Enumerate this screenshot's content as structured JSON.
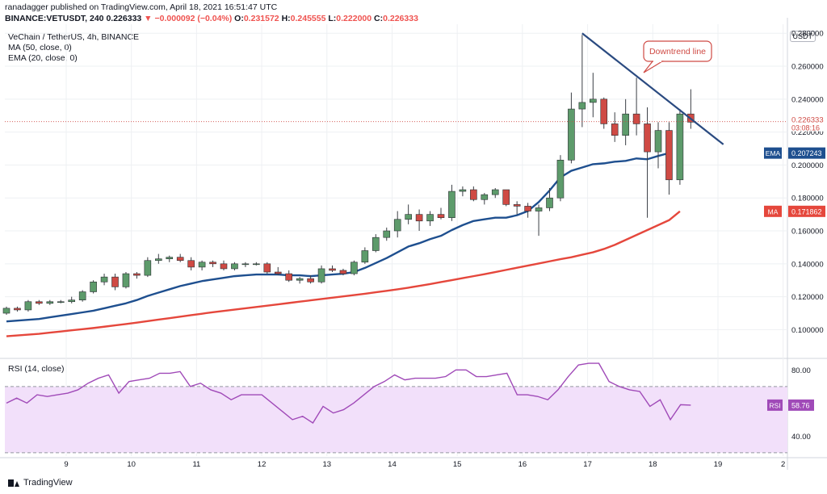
{
  "header": {
    "publisher": "ranadagger published on TradingView.com, April 18, 2021 16:51:47 UTC",
    "symbol": "BINANCE:VETUSDT, 240",
    "last": "0.226333",
    "change": "−0.000092 (−0.04%)",
    "o_label": "O:",
    "o": "0.231572",
    "h_label": "H:",
    "h": "0.245555",
    "l_label": "L:",
    "l": "0.222000",
    "c_label": "C:",
    "c": "0.226333"
  },
  "legend": {
    "title": "VeChain / TetherUS, 4h, BINANCE",
    "ma": "MA (50, close, 0)",
    "ema": "EMA (20, close, 0)",
    "rsi": "RSI (14, close)"
  },
  "footer": {
    "brand": "TradingView"
  },
  "axis": {
    "currency": "USDT"
  },
  "colors": {
    "up": "#5d9b6b",
    "down": "#cf4a44",
    "ema": "#1e4f8f",
    "ma": "#e5473c",
    "rsi_line": "#a04ab8",
    "rsi_band": "#f2e0fa",
    "trendline": "#2a4a80",
    "grid": "#eef0f3"
  },
  "chart_data": [
    {
      "type": "candlestick",
      "title": "VeChain / TetherUS, 4h, BINANCE",
      "x_ticks": [
        "9",
        "10",
        "11",
        "12",
        "13",
        "14",
        "15",
        "16",
        "17",
        "18",
        "19",
        "2"
      ],
      "y_ticks": [
        "0.280000",
        "0.260000",
        "0.240000",
        "0.220000",
        "0.200000",
        "0.180000",
        "0.160000",
        "0.140000",
        "0.120000",
        "0.100000"
      ],
      "ylim": [
        0.0855,
        0.2855
      ],
      "candles": [
        [
          0.11,
          0.114,
          0.109,
          0.113
        ],
        [
          0.113,
          0.114,
          0.111,
          0.112
        ],
        [
          0.112,
          0.118,
          0.111,
          0.117
        ],
        [
          0.117,
          0.118,
          0.115,
          0.116
        ],
        [
          0.116,
          0.118,
          0.115,
          0.117
        ],
        [
          0.117,
          0.118,
          0.116,
          0.117
        ],
        [
          0.117,
          0.12,
          0.116,
          0.118
        ],
        [
          0.118,
          0.124,
          0.117,
          0.123
        ],
        [
          0.123,
          0.13,
          0.122,
          0.129
        ],
        [
          0.129,
          0.134,
          0.127,
          0.132
        ],
        [
          0.132,
          0.134,
          0.124,
          0.126
        ],
        [
          0.126,
          0.135,
          0.125,
          0.134
        ],
        [
          0.134,
          0.135,
          0.131,
          0.133
        ],
        [
          0.133,
          0.144,
          0.132,
          0.142
        ],
        [
          0.142,
          0.146,
          0.14,
          0.143
        ],
        [
          0.143,
          0.145,
          0.141,
          0.144
        ],
        [
          0.144,
          0.146,
          0.141,
          0.142
        ],
        [
          0.142,
          0.144,
          0.136,
          0.138
        ],
        [
          0.138,
          0.142,
          0.136,
          0.141
        ],
        [
          0.141,
          0.142,
          0.138,
          0.14
        ],
        [
          0.14,
          0.142,
          0.136,
          0.137
        ],
        [
          0.137,
          0.141,
          0.136,
          0.14
        ],
        [
          0.14,
          0.141,
          0.138,
          0.14
        ],
        [
          0.14,
          0.141,
          0.139,
          0.14
        ],
        [
          0.14,
          0.141,
          0.134,
          0.135
        ],
        [
          0.135,
          0.138,
          0.133,
          0.134
        ],
        [
          0.134,
          0.136,
          0.129,
          0.13
        ],
        [
          0.13,
          0.132,
          0.128,
          0.131
        ],
        [
          0.131,
          0.133,
          0.128,
          0.129
        ],
        [
          0.129,
          0.139,
          0.128,
          0.137
        ],
        [
          0.137,
          0.139,
          0.135,
          0.136
        ],
        [
          0.136,
          0.137,
          0.133,
          0.134
        ],
        [
          0.134,
          0.142,
          0.133,
          0.141
        ],
        [
          0.141,
          0.15,
          0.14,
          0.148
        ],
        [
          0.148,
          0.158,
          0.147,
          0.156
        ],
        [
          0.156,
          0.162,
          0.154,
          0.16
        ],
        [
          0.16,
          0.172,
          0.156,
          0.167
        ],
        [
          0.167,
          0.176,
          0.164,
          0.17
        ],
        [
          0.17,
          0.173,
          0.16,
          0.166
        ],
        [
          0.166,
          0.172,
          0.163,
          0.17
        ],
        [
          0.17,
          0.174,
          0.167,
          0.168
        ],
        [
          0.168,
          0.188,
          0.166,
          0.184
        ],
        [
          0.184,
          0.187,
          0.181,
          0.185
        ],
        [
          0.185,
          0.187,
          0.178,
          0.179
        ],
        [
          0.179,
          0.183,
          0.176,
          0.182
        ],
        [
          0.182,
          0.186,
          0.18,
          0.185
        ],
        [
          0.185,
          0.185,
          0.175,
          0.176
        ],
        [
          0.176,
          0.178,
          0.17,
          0.175
        ],
        [
          0.175,
          0.177,
          0.168,
          0.172
        ],
        [
          0.172,
          0.176,
          0.157,
          0.174
        ],
        [
          0.174,
          0.186,
          0.172,
          0.18
        ],
        [
          0.18,
          0.206,
          0.178,
          0.203
        ],
        [
          0.203,
          0.244,
          0.201,
          0.234
        ],
        [
          0.234,
          0.279,
          0.223,
          0.238
        ],
        [
          0.238,
          0.256,
          0.229,
          0.24
        ],
        [
          0.24,
          0.241,
          0.222,
          0.225
        ],
        [
          0.225,
          0.232,
          0.214,
          0.218
        ],
        [
          0.218,
          0.24,
          0.212,
          0.231
        ],
        [
          0.231,
          0.253,
          0.218,
          0.225
        ],
        [
          0.225,
          0.235,
          0.168,
          0.208
        ],
        [
          0.208,
          0.226,
          0.198,
          0.221
        ],
        [
          0.221,
          0.226,
          0.182,
          0.191
        ],
        [
          0.191,
          0.234,
          0.188,
          0.231
        ],
        [
          0.231,
          0.246,
          0.222,
          0.226
        ]
      ],
      "series": [
        {
          "name": "EMA (20, close, 0)",
          "color": "#1e4f8f",
          "last": "0.207243",
          "values": [
            0.105,
            0.1055,
            0.106,
            0.1065,
            0.1075,
            0.1085,
            0.1095,
            0.1105,
            0.1115,
            0.113,
            0.1145,
            0.116,
            0.118,
            0.1205,
            0.1225,
            0.1245,
            0.1265,
            0.128,
            0.1295,
            0.1305,
            0.1315,
            0.1325,
            0.133,
            0.1335,
            0.1335,
            0.1335,
            0.133,
            0.133,
            0.1325,
            0.133,
            0.1335,
            0.134,
            0.135,
            0.1375,
            0.1405,
            0.1435,
            0.147,
            0.1505,
            0.1525,
            0.155,
            0.157,
            0.1605,
            0.1635,
            0.166,
            0.167,
            0.168,
            0.168,
            0.1695,
            0.172,
            0.1775,
            0.1845,
            0.1925,
            0.1965,
            0.1985,
            0.2005,
            0.201,
            0.202,
            0.2025,
            0.204,
            0.2035,
            0.2055,
            0.207243
          ]
        },
        {
          "name": "MA (50, close, 0)",
          "color": "#e5473c",
          "last": "0.171862",
          "values": [
            0.096,
            0.0965,
            0.097,
            0.0975,
            0.0982,
            0.0989,
            0.0996,
            0.1003,
            0.101,
            0.1018,
            0.1026,
            0.1034,
            0.1043,
            0.1052,
            0.1061,
            0.107,
            0.1079,
            0.1088,
            0.1097,
            0.1106,
            0.1114,
            0.1122,
            0.113,
            0.1138,
            0.1146,
            0.1154,
            0.1162,
            0.117,
            0.1178,
            0.1186,
            0.1194,
            0.1202,
            0.121,
            0.1218,
            0.1227,
            0.1236,
            0.1245,
            0.1255,
            0.1266,
            0.1277,
            0.1289,
            0.1301,
            0.1313,
            0.1325,
            0.1337,
            0.135,
            0.1363,
            0.1376,
            0.1389,
            0.1402,
            0.1415,
            0.1428,
            0.144,
            0.1455,
            0.147,
            0.149,
            0.1515,
            0.1545,
            0.1575,
            0.1605,
            0.1635,
            0.1665,
            0.171862
          ]
        }
      ],
      "last_price": {
        "value": "0.226333",
        "countdown": "03:08:16"
      },
      "annotations": [
        {
          "text": "Downtrend line",
          "line_from": [
            53,
            0.28
          ],
          "line_to": [
            66,
            0.2125
          ]
        }
      ]
    },
    {
      "type": "line",
      "title": "RSI (14, close)",
      "y_ticks": [
        "80.00",
        "40.00"
      ],
      "ylim": [
        28,
        86
      ],
      "band": [
        30,
        70
      ],
      "series": [
        {
          "name": "RSI (14, close)",
          "color": "#a04ab8",
          "last": "58.76",
          "values": [
            60,
            63,
            60,
            65,
            64,
            65,
            66,
            68,
            72,
            75,
            77,
            66,
            73,
            74,
            75,
            78,
            78,
            79,
            70,
            72,
            68,
            66,
            62,
            65,
            65,
            65,
            60,
            55,
            50,
            52,
            48,
            58,
            54,
            56,
            60,
            65,
            70,
            73,
            77,
            74,
            75,
            75,
            75,
            76,
            80,
            80,
            76,
            76,
            77,
            78,
            65,
            65,
            64,
            62,
            68,
            76,
            83,
            84,
            84,
            73,
            70,
            68,
            67,
            58,
            62,
            50,
            59,
            58.76
          ]
        }
      ]
    }
  ]
}
